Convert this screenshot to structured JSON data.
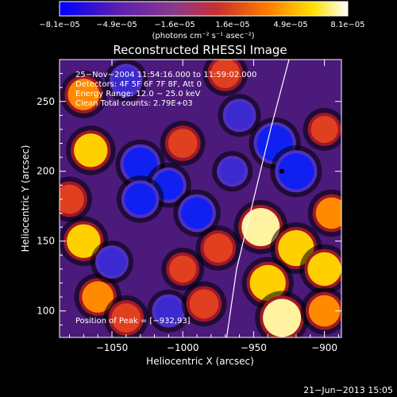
{
  "chart_data": {
    "type": "heatmap",
    "title": "Reconstructed RHESSI Image",
    "xlabel": "Heliocentric X (arcsec)",
    "ylabel": "Heliocentric Y (arcsec)",
    "xlim": [
      -1087,
      -888
    ],
    "ylim": [
      81,
      280
    ],
    "xticks": [
      -1050,
      -1000,
      -950,
      -900
    ],
    "xtick_labels": [
      "−1050",
      "−1000",
      "−950",
      "−900"
    ],
    "yticks": [
      100,
      150,
      200,
      250
    ],
    "ytick_labels": [
      "100",
      "150",
      "200",
      "250"
    ],
    "colorbar": {
      "range": [
        -8.1e-05,
        8.1e-05
      ],
      "tick_labels": [
        "−8.1e−05",
        "−4.9e−05",
        "−1.6e−05",
        "1.6e−05",
        "4.9e−05",
        "8.1e−05"
      ],
      "units": "(photons cm⁻² s⁻¹ asec⁻²)",
      "colors": [
        "#0000ff",
        "#5a1fb0",
        "#8a3a8a",
        "#c83030",
        "#ff7a00",
        "#ffe000",
        "#ffffff"
      ]
    },
    "info_lines": [
      "25−Nov−2004 11:54:16.000 to 11:59:02.000",
      "Detectors: 4F 5F 6F 7F 8F, Att 0",
      "Energy Range: 12.0 − 25.0 keV",
      "Clean    Total counts: 2.79E+03"
    ],
    "peak": {
      "x": -932,
      "y": 93,
      "label": "Position of Peak = [−932,93]"
    },
    "limb": [
      [
        -969,
        81
      ],
      [
        -962,
        130
      ],
      [
        -950,
        180
      ],
      [
        -938,
        230
      ],
      [
        -925,
        280
      ]
    ],
    "blobs": [
      {
        "x": -1070,
        "y": 255,
        "v": 0.7
      },
      {
        "x": -1065,
        "y": 215,
        "v": 0.8
      },
      {
        "x": -1030,
        "y": 205,
        "v": -0.8
      },
      {
        "x": -1010,
        "y": 190,
        "v": -0.6
      },
      {
        "x": -1030,
        "y": 180,
        "v": -0.7
      },
      {
        "x": -990,
        "y": 170,
        "v": -0.7
      },
      {
        "x": -1000,
        "y": 220,
        "v": 0.6
      },
      {
        "x": -960,
        "y": 240,
        "v": -0.5
      },
      {
        "x": -935,
        "y": 220,
        "v": -0.9
      },
      {
        "x": -920,
        "y": 200,
        "v": -0.9
      },
      {
        "x": -900,
        "y": 230,
        "v": 0.5
      },
      {
        "x": -945,
        "y": 160,
        "v": 1.0
      },
      {
        "x": -920,
        "y": 145,
        "v": 0.9
      },
      {
        "x": -900,
        "y": 130,
        "v": 0.8
      },
      {
        "x": -940,
        "y": 120,
        "v": 0.9
      },
      {
        "x": -930,
        "y": 95,
        "v": 1.0
      },
      {
        "x": -975,
        "y": 145,
        "v": 0.6
      },
      {
        "x": -1000,
        "y": 130,
        "v": 0.5
      },
      {
        "x": -1070,
        "y": 150,
        "v": 0.8
      },
      {
        "x": -1060,
        "y": 110,
        "v": 0.7
      },
      {
        "x": -1040,
        "y": 95,
        "v": 0.6
      },
      {
        "x": -1080,
        "y": 180,
        "v": 0.6
      },
      {
        "x": -1050,
        "y": 135,
        "v": -0.5
      },
      {
        "x": -1010,
        "y": 100,
        "v": -0.5
      },
      {
        "x": -985,
        "y": 105,
        "v": 0.6
      },
      {
        "x": -970,
        "y": 270,
        "v": 0.6
      },
      {
        "x": -1040,
        "y": 265,
        "v": -0.5
      },
      {
        "x": -900,
        "y": 100,
        "v": 0.7
      },
      {
        "x": -895,
        "y": 170,
        "v": 0.7
      },
      {
        "x": -965,
        "y": 200,
        "v": -0.4
      }
    ]
  },
  "footer": {
    "date": "21−Jun−2013 15:05"
  }
}
